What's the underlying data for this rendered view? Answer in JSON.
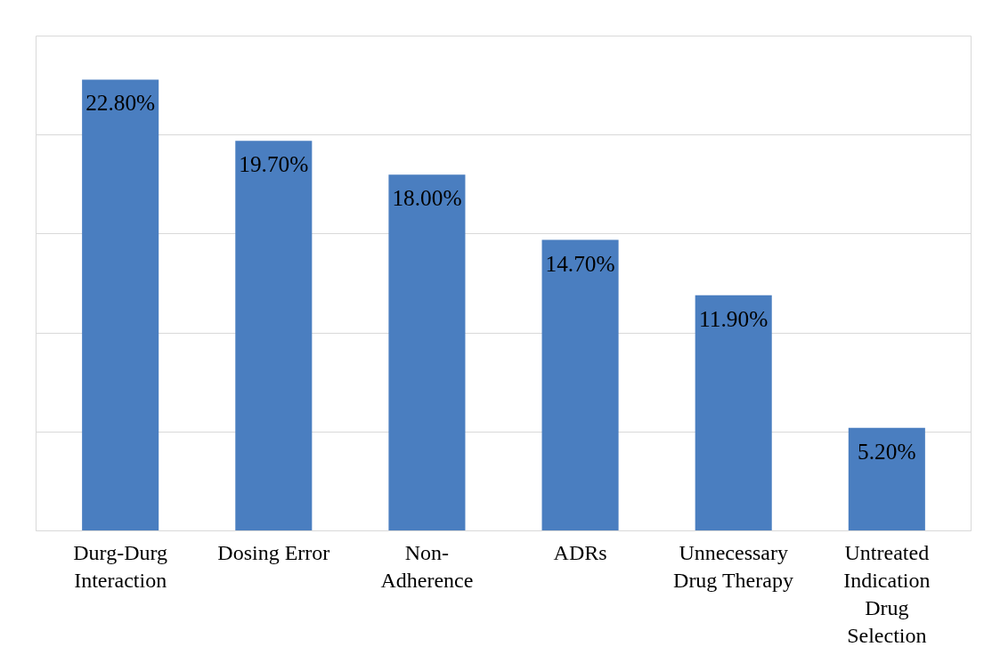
{
  "chart_data": {
    "type": "bar",
    "categories": [
      "Durg-Durg Interaction",
      "Dosing Error",
      "Non-Adherence",
      "ADRs",
      "Unnecessary Drug Therapy",
      "Untreated Indication Drug Selection"
    ],
    "values": [
      22.8,
      19.7,
      18.0,
      14.7,
      11.9,
      5.2
    ],
    "value_labels": [
      "22.80%",
      "19.70%",
      "18.00%",
      "14.70%",
      "11.90%",
      "5.20%"
    ],
    "color": "#4a7ec0",
    "ylim": [
      0,
      25
    ],
    "yticks": [
      {
        "value": 0,
        "label": null
      },
      {
        "value": 5,
        "label": null
      },
      {
        "value": 10,
        "label": null
      },
      {
        "value": 15,
        "label": null
      },
      {
        "value": 20,
        "label": null
      },
      {
        "value": 25,
        "label": null
      }
    ],
    "grid": "y",
    "tick_labels": "x"
  }
}
